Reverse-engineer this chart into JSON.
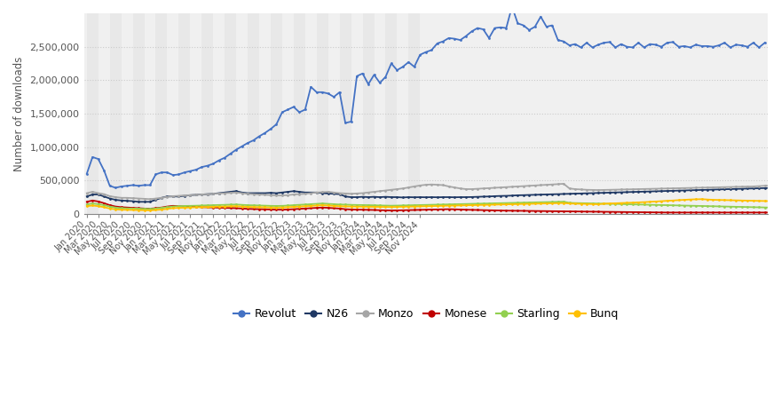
{
  "ylabel": "Number of downloads",
  "background_color": "#ffffff",
  "plot_bg_color": "#f0f0f0",
  "grid_color": "#cccccc",
  "series": {
    "Revolut": {
      "color": "#4472c4",
      "values": [
        600000,
        850000,
        820000,
        650000,
        420000,
        390000,
        410000,
        420000,
        430000,
        420000,
        430000,
        430000,
        590000,
        620000,
        620000,
        580000,
        590000,
        620000,
        640000,
        660000,
        700000,
        720000,
        750000,
        800000,
        840000,
        900000,
        960000,
        1010000,
        1060000,
        1100000,
        1160000,
        1210000,
        1270000,
        1340000,
        1520000,
        1560000,
        1600000,
        1520000,
        1560000,
        1900000,
        1820000,
        1820000,
        1800000,
        1750000,
        1820000,
        1360000,
        1380000,
        2060000,
        2100000,
        1940000,
        2080000,
        1960000,
        2050000,
        2250000,
        2150000,
        2200000,
        2270000,
        2200000,
        2380000,
        2420000,
        2450000,
        2550000,
        2580000,
        2630000,
        2620000,
        2600000,
        2660000,
        2730000,
        2780000,
        2760000,
        2630000,
        2780000,
        2790000,
        2780000,
        3100000,
        2850000,
        2820000,
        2750000,
        2800000,
        2950000,
        2800000,
        2820000,
        2600000,
        2580000,
        2520000,
        2540000,
        2490000,
        2560000,
        2490000,
        2530000,
        2560000,
        2570000,
        2490000,
        2540000,
        2500000,
        2490000,
        2560000,
        2490000,
        2540000,
        2530000,
        2500000,
        2560000,
        2570000,
        2500000,
        2510000,
        2490000,
        2530000,
        2510000,
        2510000,
        2500000,
        2520000,
        2560000,
        2490000,
        2530000,
        2520000,
        2500000,
        2560000,
        2490000,
        2560000
      ]
    },
    "N26": {
      "color": "#1f3864",
      "values": [
        260000,
        290000,
        290000,
        260000,
        230000,
        210000,
        200000,
        195000,
        190000,
        180000,
        180000,
        180000,
        210000,
        240000,
        260000,
        260000,
        260000,
        270000,
        280000,
        285000,
        290000,
        295000,
        300000,
        310000,
        320000,
        330000,
        340000,
        320000,
        310000,
        310000,
        310000,
        310000,
        315000,
        310000,
        320000,
        330000,
        340000,
        330000,
        320000,
        320000,
        320000,
        310000,
        305000,
        300000,
        295000,
        260000,
        250000,
        250000,
        255000,
        250000,
        255000,
        250000,
        255000,
        250000,
        250000,
        245000,
        250000,
        248000,
        250000,
        248000,
        250000,
        248000,
        250000,
        250000,
        248000,
        250000,
        250000,
        252000,
        255000,
        258000,
        260000,
        265000,
        268000,
        270000,
        273000,
        278000,
        280000,
        283000,
        285000,
        288000,
        290000,
        293000,
        295000,
        298000,
        300000,
        303000,
        305000,
        308000,
        310000,
        313000,
        315000,
        318000,
        320000,
        323000,
        325000,
        328000,
        330000,
        333000,
        335000,
        338000,
        340000,
        343000,
        345000,
        348000,
        350000,
        353000,
        355000,
        358000,
        360000,
        363000,
        365000,
        368000,
        370000,
        373000,
        375000,
        378000,
        380000,
        383000,
        385000,
        388000
      ]
    },
    "Monzo": {
      "color": "#a6a6a6",
      "values": [
        310000,
        330000,
        310000,
        295000,
        265000,
        250000,
        240000,
        240000,
        235000,
        230000,
        225000,
        220000,
        230000,
        240000,
        255000,
        265000,
        270000,
        275000,
        280000,
        285000,
        290000,
        295000,
        300000,
        305000,
        310000,
        315000,
        320000,
        310000,
        300000,
        295000,
        290000,
        285000,
        280000,
        275000,
        275000,
        280000,
        290000,
        295000,
        300000,
        310000,
        320000,
        325000,
        330000,
        320000,
        310000,
        305000,
        300000,
        305000,
        310000,
        320000,
        330000,
        340000,
        350000,
        360000,
        370000,
        380000,
        395000,
        410000,
        425000,
        435000,
        440000,
        435000,
        430000,
        410000,
        395000,
        380000,
        370000,
        370000,
        375000,
        380000,
        385000,
        390000,
        395000,
        400000,
        405000,
        410000,
        415000,
        420000,
        425000,
        430000,
        435000,
        440000,
        445000,
        450000,
        380000,
        370000,
        365000,
        360000,
        358000,
        356000,
        358000,
        360000,
        362000,
        364000,
        366000,
        368000,
        370000,
        372000,
        374000,
        376000,
        378000,
        380000,
        382000,
        384000,
        386000,
        388000,
        390000,
        392000,
        394000,
        396000,
        398000,
        400000,
        402000,
        404000,
        406000,
        408000,
        410000,
        415000,
        420000,
        425000
      ]
    },
    "Monese": {
      "color": "#c00000",
      "values": [
        180000,
        200000,
        185000,
        160000,
        130000,
        110000,
        100000,
        95000,
        90000,
        85000,
        80000,
        78000,
        85000,
        95000,
        110000,
        120000,
        115000,
        110000,
        108000,
        105000,
        100000,
        98000,
        95000,
        92000,
        90000,
        88000,
        85000,
        80000,
        75000,
        72000,
        70000,
        68000,
        65000,
        63000,
        62000,
        65000,
        70000,
        75000,
        80000,
        85000,
        90000,
        95000,
        90000,
        85000,
        80000,
        70000,
        65000,
        63000,
        62000,
        60000,
        58000,
        55000,
        53000,
        50000,
        52000,
        54000,
        56000,
        58000,
        60000,
        62000,
        64000,
        66000,
        68000,
        70000,
        68000,
        65000,
        62000,
        60000,
        58000,
        56000,
        54000,
        52000,
        50000,
        48000,
        47000,
        46000,
        45000,
        44000,
        43000,
        42000,
        41000,
        40000,
        39000,
        38000,
        37000,
        36000,
        35000,
        34000,
        33000,
        32000,
        31000,
        30000,
        29000,
        28000,
        27000,
        26000,
        25000,
        24000,
        23000,
        22000,
        21000,
        20000,
        20000,
        20000,
        20000,
        20000,
        20000,
        20000,
        20000,
        20000,
        20000,
        20000,
        20000,
        20000,
        20000,
        20000,
        20000,
        20000,
        20000,
        20000
      ]
    },
    "Starling": {
      "color": "#92d050",
      "values": [
        140000,
        155000,
        145000,
        130000,
        110000,
        95000,
        85000,
        82000,
        80000,
        78000,
        75000,
        73000,
        80000,
        90000,
        100000,
        110000,
        115000,
        118000,
        120000,
        122000,
        125000,
        128000,
        130000,
        133000,
        135000,
        138000,
        140000,
        135000,
        130000,
        128000,
        125000,
        123000,
        120000,
        118000,
        120000,
        125000,
        130000,
        135000,
        140000,
        145000,
        150000,
        155000,
        150000,
        145000,
        140000,
        138000,
        135000,
        133000,
        132000,
        130000,
        128000,
        126000,
        124000,
        122000,
        124000,
        126000,
        128000,
        130000,
        132000,
        134000,
        136000,
        138000,
        140000,
        142000,
        144000,
        146000,
        148000,
        150000,
        152000,
        154000,
        156000,
        158000,
        160000,
        162000,
        164000,
        166000,
        168000,
        170000,
        172000,
        174000,
        176000,
        178000,
        180000,
        182000,
        165000,
        162000,
        160000,
        158000,
        156000,
        154000,
        152000,
        150000,
        148000,
        146000,
        144000,
        142000,
        140000,
        138000,
        136000,
        134000,
        132000,
        130000,
        128000,
        126000,
        124000,
        122000,
        120000,
        118000,
        116000,
        114000,
        112000,
        110000,
        108000,
        106000,
        104000,
        102000,
        100000,
        98000,
        96000,
        94000
      ]
    },
    "Bunq": {
      "color": "#ffc000",
      "values": [
        115000,
        125000,
        115000,
        100000,
        80000,
        68000,
        62000,
        60000,
        58000,
        56000,
        54000,
        52000,
        58000,
        65000,
        75000,
        85000,
        90000,
        92000,
        95000,
        98000,
        100000,
        102000,
        105000,
        108000,
        110000,
        113000,
        115000,
        110000,
        105000,
        102000,
        100000,
        98000,
        96000,
        94000,
        96000,
        100000,
        105000,
        110000,
        115000,
        120000,
        125000,
        130000,
        125000,
        120000,
        115000,
        112000,
        110000,
        108000,
        107000,
        106000,
        105000,
        104000,
        103000,
        102000,
        104000,
        106000,
        108000,
        110000,
        112000,
        114000,
        116000,
        118000,
        120000,
        122000,
        124000,
        126000,
        128000,
        130000,
        132000,
        134000,
        136000,
        138000,
        140000,
        142000,
        144000,
        146000,
        148000,
        150000,
        152000,
        154000,
        156000,
        158000,
        160000,
        162000,
        155000,
        152000,
        150000,
        148000,
        146000,
        144000,
        152000,
        155000,
        158000,
        162000,
        165000,
        168000,
        172000,
        176000,
        180000,
        185000,
        190000,
        195000,
        200000,
        205000,
        210000,
        215000,
        218000,
        220000,
        215000,
        210000,
        208000,
        206000,
        204000,
        202000,
        200000,
        198000,
        196000,
        194000,
        192000,
        190000
      ]
    }
  },
  "x_labels": [
    "Jan 2020",
    "Mar 2020",
    "May 2020",
    "Jul 2020",
    "Sep 2020",
    "Nov 2020",
    "Jan 2021",
    "Mar 2021",
    "May 2021",
    "Jul 2021",
    "Sep 2021",
    "Nov 2021",
    "Jan 2022",
    "Mar 2022",
    "May 2022",
    "Jul 2022",
    "Sep 2022",
    "Nov 2022",
    "Jan 2023",
    "Mar 2023",
    "May 2023",
    "Jul 2023",
    "Sep 2023",
    "Nov 2023",
    "Jan 2024",
    "Mar 2024",
    "May 2024",
    "Jul 2024",
    "Sep 2024",
    "Nov 2024"
  ],
  "x_label_indices": [
    0,
    2,
    4,
    6,
    8,
    10,
    12,
    14,
    16,
    18,
    20,
    22,
    24,
    26,
    28,
    30,
    32,
    34,
    36,
    38,
    40,
    42,
    44,
    46,
    48,
    50,
    52,
    54,
    56,
    58
  ],
  "ylim": [
    0,
    3000000
  ],
  "yticks": [
    0,
    500000,
    1000000,
    1500000,
    2000000,
    2500000
  ],
  "ytick_labels": [
    "0",
    "500,000",
    "1,000,000",
    "1,500,000",
    "2,000,000",
    "2,500,000"
  ],
  "series_order": [
    "Revolut",
    "N26",
    "Monzo",
    "Monese",
    "Starling",
    "Bunq"
  ],
  "band_colors": [
    "#e8e8e8",
    "#f0f0f0"
  ],
  "text_color": "#555555"
}
